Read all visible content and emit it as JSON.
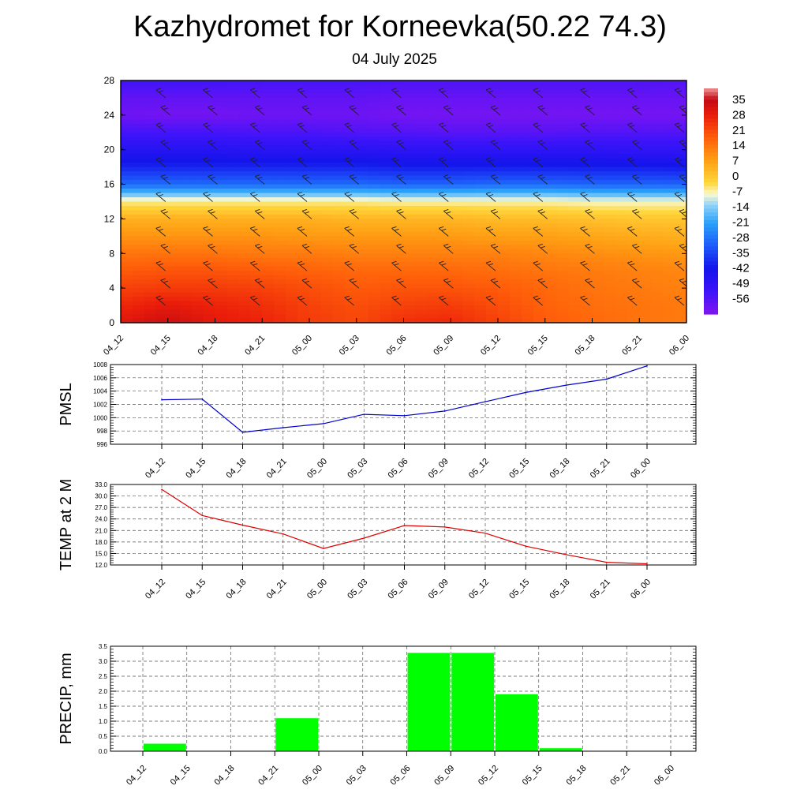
{
  "header": {
    "title": "Kazhydromet for Korneevka(50.22 74.3)",
    "subtitle": "04 July 2025"
  },
  "colors": {
    "pmsl_line": "#0000cc",
    "temp_line": "#dd0000",
    "precip_bar": "#00ff00"
  },
  "chart_data": [
    {
      "type": "heatmap",
      "title": "",
      "ylim": [
        0,
        28
      ],
      "y_ticks": [
        "0",
        "4",
        "8",
        "12",
        "16",
        "20",
        "24",
        "28"
      ],
      "x_ticks": [
        "04_12",
        "04_15",
        "04_18",
        "04_21",
        "05_00",
        "05_03",
        "05_06",
        "05_09",
        "05_12",
        "05_15",
        "05_18",
        "05_21",
        "06_00"
      ],
      "colorbar_labels": [
        "35",
        "28",
        "21",
        "14",
        "7",
        "0",
        "-7",
        "-14",
        "-21",
        "-28",
        "-35",
        "-42",
        "-49",
        "-56"
      ],
      "colorbar_range": [
        -63,
        40
      ],
      "layers": [
        0,
        2,
        4,
        6,
        8,
        10,
        12,
        14,
        16,
        18,
        20,
        22,
        24,
        26,
        28
      ],
      "values": [
        [
          30,
          26,
          22,
          18,
          14,
          9,
          4,
          -6,
          -30,
          -40,
          -47,
          -54,
          -60,
          -58,
          -53
        ],
        [
          33,
          29,
          23,
          19,
          14,
          9,
          4,
          -6,
          -30,
          -40,
          -47,
          -54,
          -61,
          -58,
          -53
        ],
        [
          29,
          27,
          23,
          19,
          14,
          9,
          4,
          -6,
          -30,
          -40,
          -47,
          -54,
          -61,
          -58,
          -53
        ],
        [
          27,
          25,
          22,
          18,
          13,
          9,
          4,
          -6,
          -30,
          -40,
          -48,
          -55,
          -60,
          -58,
          -54
        ],
        [
          23,
          22,
          20,
          17,
          13,
          8,
          4,
          -6,
          -30,
          -40,
          -48,
          -55,
          -60,
          -58,
          -54
        ],
        [
          21,
          20,
          18,
          16,
          12,
          8,
          3,
          -6,
          -30,
          -40,
          -48,
          -56,
          -60,
          -58,
          -54
        ],
        [
          25,
          22,
          19,
          16,
          12,
          8,
          3,
          -7,
          -31,
          -41,
          -49,
          -56,
          -61,
          -59,
          -55
        ],
        [
          26,
          23,
          19,
          16,
          12,
          8,
          3,
          -7,
          -31,
          -41,
          -49,
          -57,
          -61,
          -59,
          -55
        ],
        [
          22,
          20,
          18,
          15,
          12,
          7,
          2,
          -7,
          -30,
          -41,
          -49,
          -57,
          -61,
          -59,
          -55
        ],
        [
          18,
          17,
          16,
          14,
          11,
          7,
          2,
          -7,
          -30,
          -41,
          -49,
          -57,
          -61,
          -59,
          -55
        ],
        [
          16,
          15,
          14,
          13,
          10,
          6,
          1,
          -8,
          -31,
          -41,
          -49,
          -56,
          -61,
          -59,
          -55
        ],
        [
          14,
          14,
          13,
          12,
          9,
          5,
          0,
          -8,
          -31,
          -41,
          -50,
          -56,
          -61,
          -59,
          -55
        ],
        [
          13,
          13,
          12,
          11,
          8,
          4,
          0,
          -8,
          -31,
          -42,
          -50,
          -56,
          -61,
          -59,
          -56
        ]
      ]
    },
    {
      "type": "line",
      "ylabel": "PMSL",
      "ylim": [
        996,
        1008
      ],
      "y_ticks": [
        "996",
        "998",
        "1000",
        "1002",
        "1004",
        "1006",
        "1008"
      ],
      "categories": [
        "04_12",
        "04_15",
        "04_18",
        "04_21",
        "05_00",
        "05_03",
        "05_06",
        "05_09",
        "05_12",
        "05_15",
        "05_18",
        "05_21",
        "06_00"
      ],
      "values": [
        1002.7,
        1002.8,
        997.8,
        998.5,
        999.1,
        1000.5,
        1000.3,
        1001.0,
        1002.4,
        1003.8,
        1004.9,
        1005.8,
        1007.8
      ]
    },
    {
      "type": "line",
      "ylabel": "TEMP at 2 M",
      "ylim": [
        12.0,
        33.0
      ],
      "y_ticks": [
        "12.0",
        "15.0",
        "18.0",
        "21.0",
        "24.0",
        "27.0",
        "30.0",
        "33.0"
      ],
      "categories": [
        "04_12",
        "04_15",
        "04_18",
        "04_21",
        "05_00",
        "05_03",
        "05_06",
        "05_09",
        "05_12",
        "05_15",
        "05_18",
        "05_21",
        "06_00"
      ],
      "values": [
        31.7,
        24.9,
        22.4,
        20.1,
        16.3,
        19.0,
        22.3,
        21.9,
        20.3,
        16.9,
        14.7,
        12.7,
        12.3
      ]
    },
    {
      "type": "bar",
      "ylabel": "PRECIP, mm",
      "ylim": [
        0,
        3.5
      ],
      "y_ticks": [
        "0.0",
        "0.5",
        "1.0",
        "1.5",
        "2.0",
        "2.5",
        "3.0",
        "3.5"
      ],
      "categories": [
        "04_12",
        "04_15",
        "04_18",
        "04_21",
        "05_00",
        "05_03",
        "05_06",
        "05_09",
        "05_12",
        "05_15",
        "05_18",
        "05_21",
        "06_00"
      ],
      "values": [
        0,
        0.25,
        0,
        0,
        1.1,
        0,
        0,
        3.28,
        3.28,
        1.9,
        0.1,
        0,
        0
      ]
    }
  ]
}
